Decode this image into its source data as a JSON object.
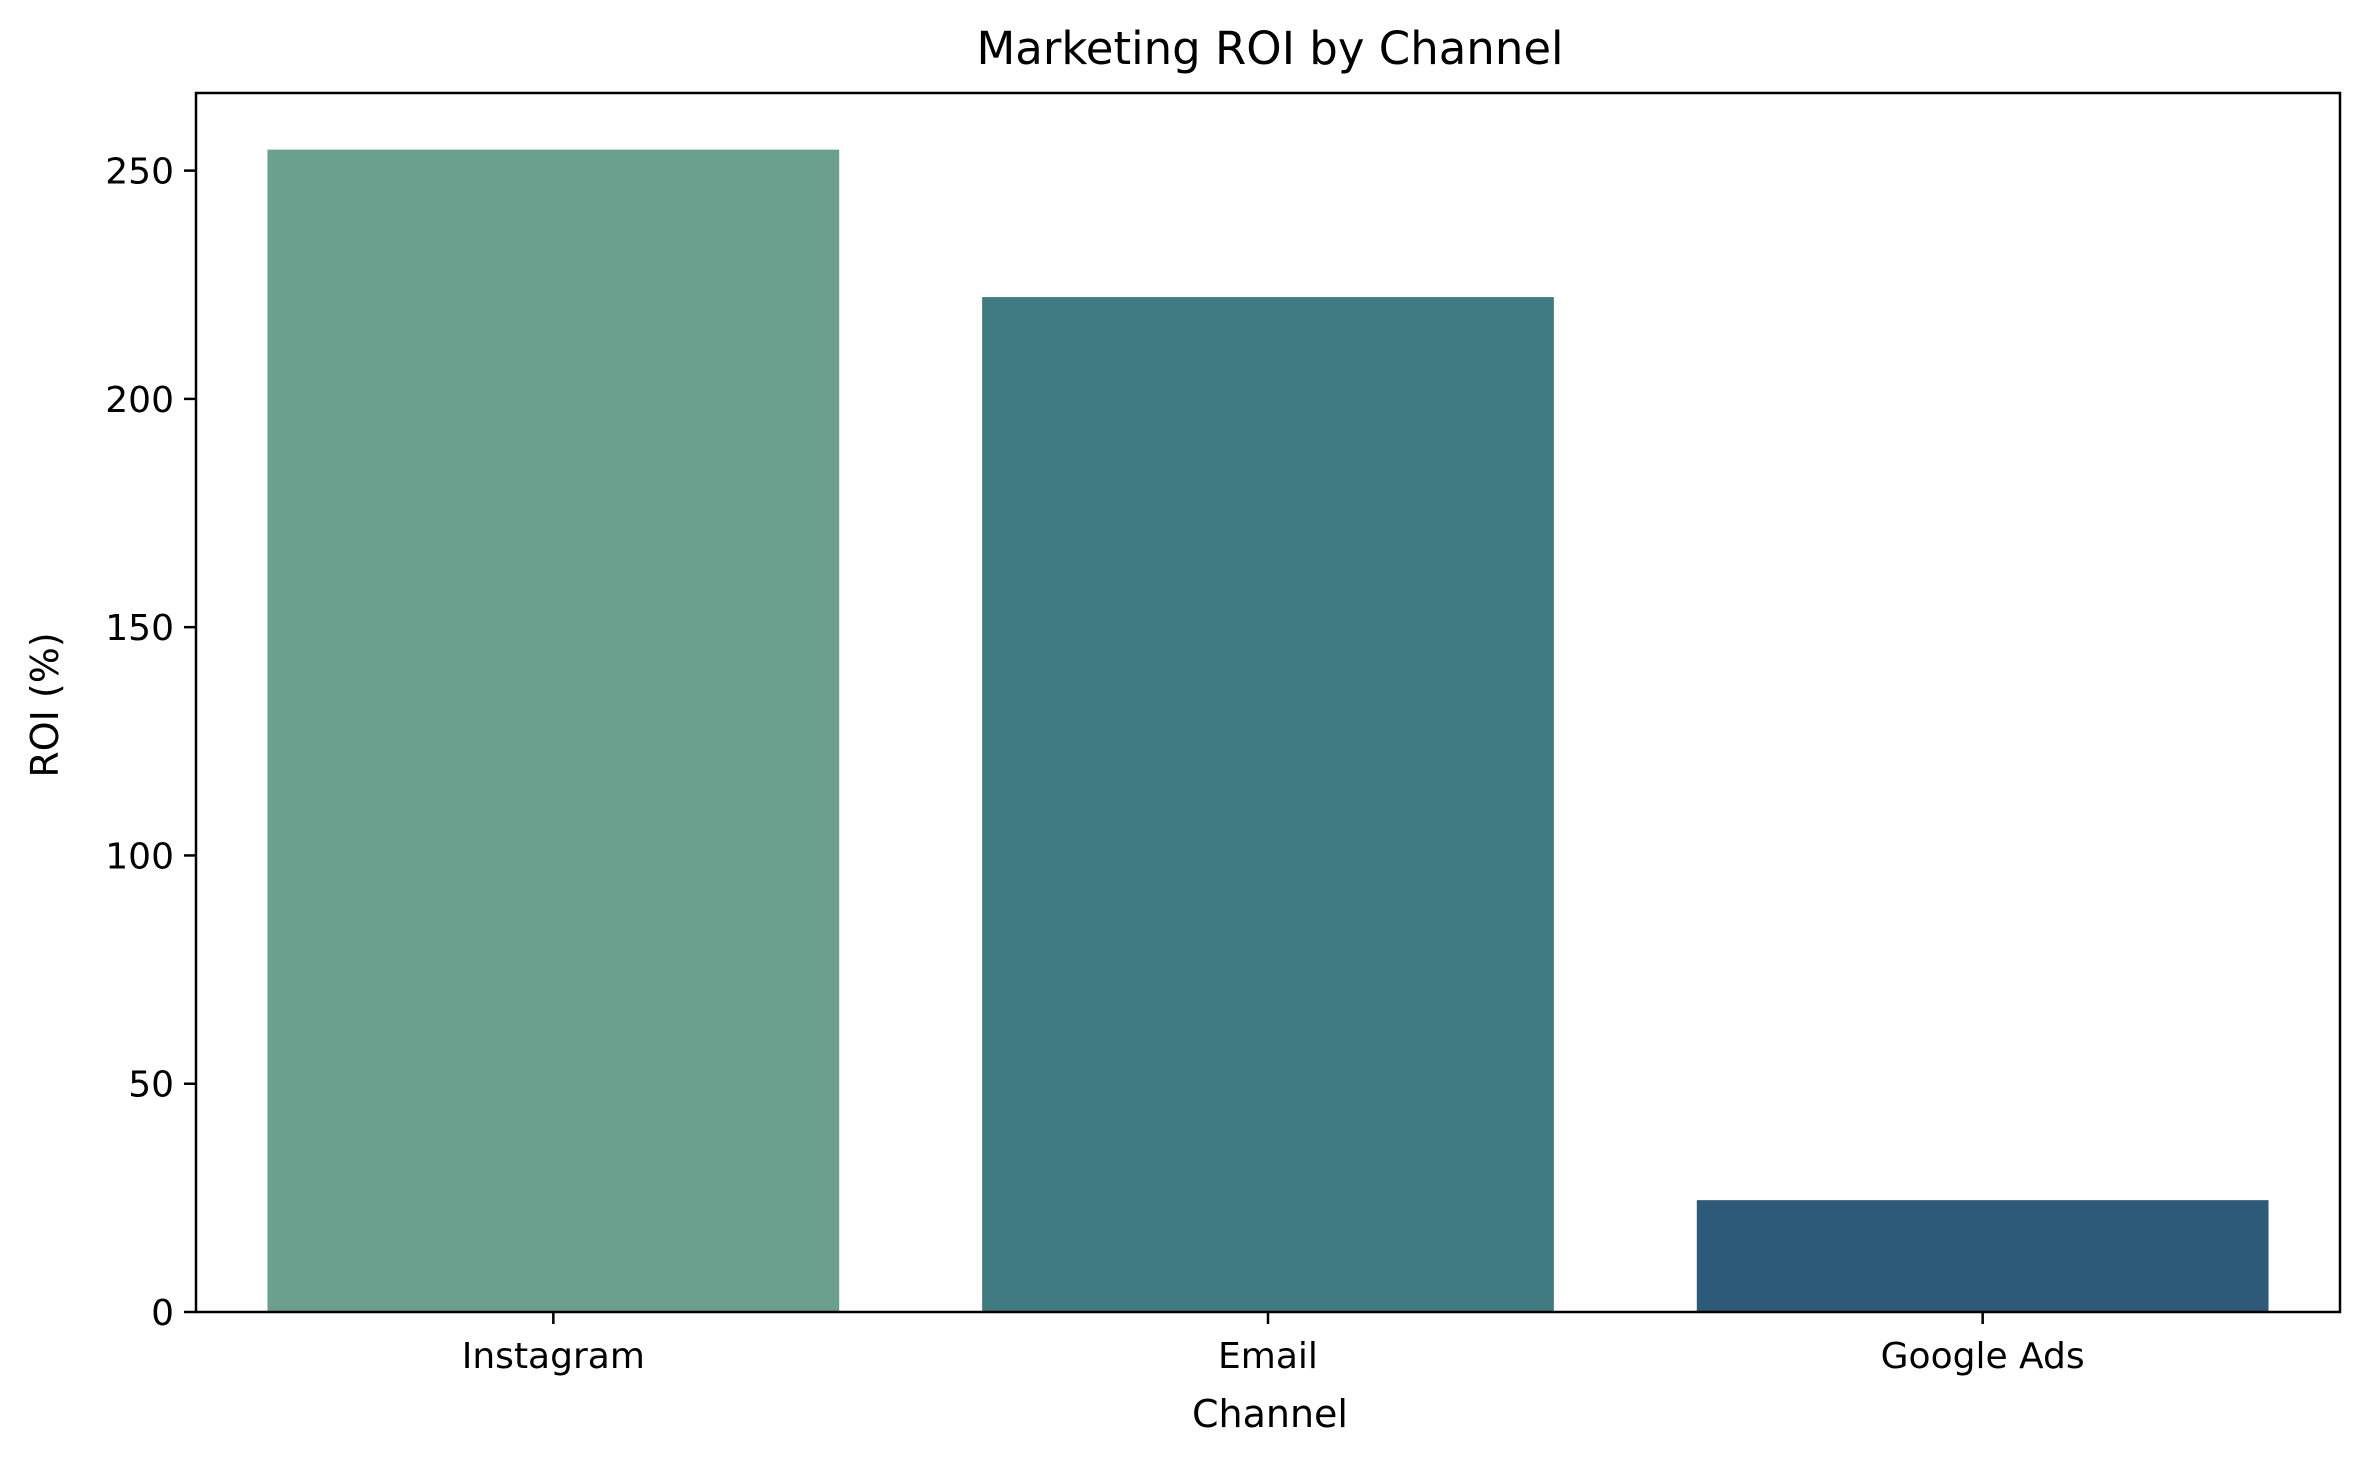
{
  "chart_data": {
    "type": "bar",
    "title": "Marketing ROI by Channel",
    "xlabel": "Channel",
    "ylabel": "ROI (%)",
    "categories": [
      "Instagram",
      "Email",
      "Google Ads"
    ],
    "values": [
      254.6,
      222.3,
      24.5
    ],
    "colors": [
      "#6aa08d",
      "#407b82",
      "#2d5a79"
    ],
    "ylim": [
      0,
      267
    ],
    "yticks": [
      0,
      50,
      100,
      150,
      200,
      250
    ],
    "grid": false,
    "legend": "none"
  }
}
